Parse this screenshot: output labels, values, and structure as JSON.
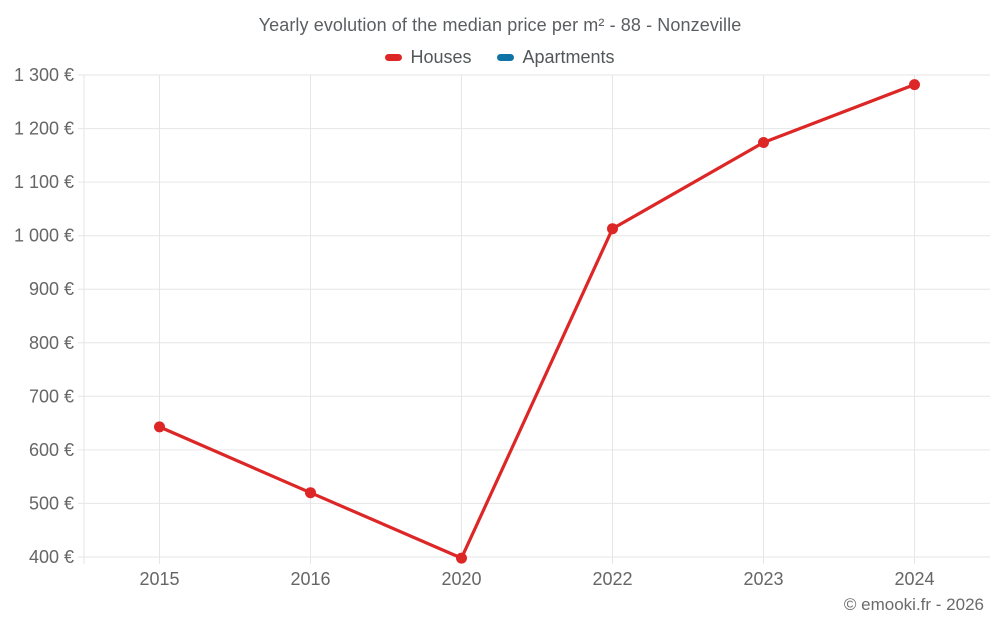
{
  "chart_data": {
    "type": "line",
    "title": "Yearly evolution of the median price per m² - 88 - Nonzeville",
    "categories": [
      "2015",
      "2016",
      "2020",
      "2022",
      "2023",
      "2024"
    ],
    "series": [
      {
        "name": "Houses",
        "color": "#dd2727",
        "values": [
          643,
          520,
          398,
          1013,
          1174,
          1282
        ]
      },
      {
        "name": "Apartments",
        "color": "#0f73a5",
        "values": []
      }
    ],
    "xlabel": "",
    "ylabel": "",
    "ylim": [
      400,
      1300
    ],
    "ytick_step": 100,
    "ytick_suffix": " €",
    "grid": true,
    "legend_position": "top",
    "marker": "circle"
  },
  "footer": {
    "credit": "© emooki.fr - 2026"
  },
  "colors": {
    "grid": "#e6e6e6",
    "tick_text": "#666666",
    "title_text": "#5b5e61",
    "legend_text": "#54575a"
  }
}
